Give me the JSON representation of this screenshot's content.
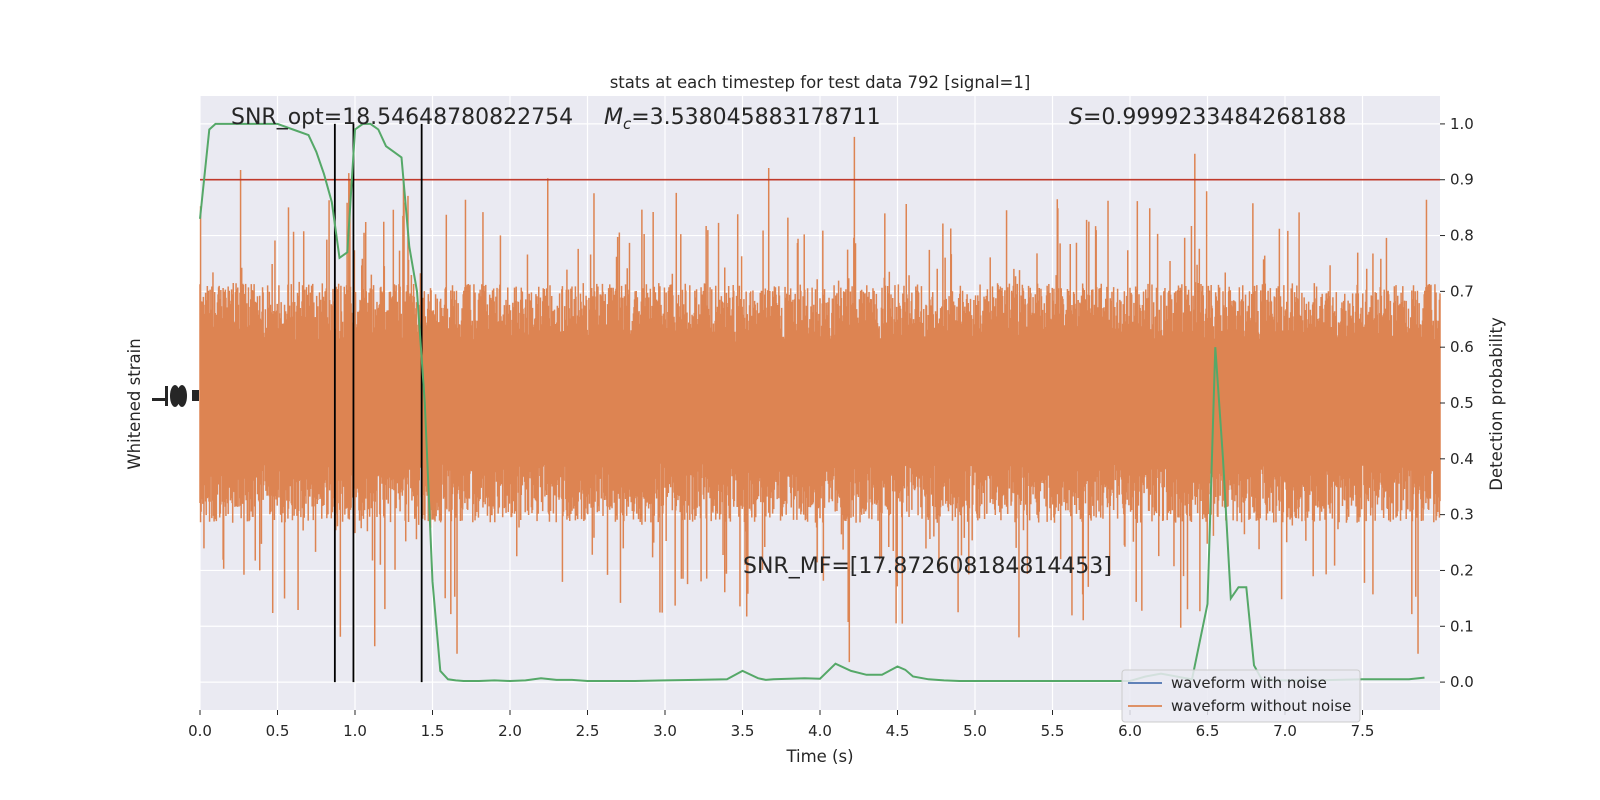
{
  "chart_data": {
    "type": "line",
    "title": "stats at each timestep for test data 792 [signal=1]",
    "xlabel": "Time (s)",
    "ylabel_left": "Whitened strain",
    "ylabel_right": "Detection probability",
    "xlim": [
      0.0,
      8.0
    ],
    "ylim_right": [
      -0.05,
      1.05
    ],
    "x_ticks": [
      "0.0",
      "0.5",
      "1.0",
      "1.5",
      "2.0",
      "2.5",
      "3.0",
      "3.5",
      "4.0",
      "4.5",
      "5.0",
      "5.5",
      "6.0",
      "6.5",
      "7.0",
      "7.5"
    ],
    "y_ticks_right": [
      "0.0",
      "0.1",
      "0.2",
      "0.3",
      "0.4",
      "0.5",
      "0.6",
      "0.7",
      "0.8",
      "0.9",
      "1.0"
    ],
    "grid": true,
    "legend_position": "lower-right",
    "annotations": {
      "snr_opt": "SNR_opt=18.54648780822754",
      "mc_symbol": "M",
      "mc_sub": "c",
      "mc_value": "=3.538045883178711",
      "s_symbol": "S",
      "s_value": "=0.9999233484268188",
      "snr_mf": "SNR_MF=[17.872608184814453]"
    },
    "threshold": {
      "value": 0.9,
      "color": "#c0392b"
    },
    "vertical_lines": [
      0.87,
      0.99,
      1.43
    ],
    "series": [
      {
        "name": "waveform with noise",
        "color": "#4c72b0"
      },
      {
        "name": "waveform without noise",
        "color": "#dd8452"
      },
      {
        "color": "#55a868",
        "x": [
          0.0,
          0.06,
          0.1,
          0.15,
          0.2,
          0.3,
          0.4,
          0.5,
          0.6,
          0.7,
          0.75,
          0.8,
          0.85,
          0.9,
          0.95,
          1.0,
          1.05,
          1.1,
          1.15,
          1.2,
          1.25,
          1.3,
          1.35,
          1.4,
          1.45,
          1.5,
          1.55,
          1.6,
          1.65,
          1.7,
          1.8,
          1.9,
          2.0,
          2.1,
          2.2,
          2.3,
          2.4,
          2.5,
          2.6,
          2.7,
          2.8,
          3.0,
          3.2,
          3.4,
          3.5,
          3.6,
          3.65,
          3.7,
          3.8,
          3.9,
          4.0,
          4.1,
          4.2,
          4.3,
          4.4,
          4.5,
          4.55,
          4.6,
          4.7,
          4.8,
          4.9,
          5.0,
          5.5,
          6.0,
          6.1,
          6.2,
          6.3,
          6.4,
          6.5,
          6.55,
          6.6,
          6.65,
          6.7,
          6.75,
          6.8,
          6.85,
          6.9,
          6.95,
          7.0,
          7.1,
          7.2,
          7.5,
          7.8,
          7.9
        ],
        "values": [
          0.83,
          0.99,
          1.0,
          1.0,
          1.0,
          1.0,
          1.0,
          1.0,
          0.99,
          0.98,
          0.95,
          0.91,
          0.86,
          0.76,
          0.77,
          0.99,
          1.0,
          1.0,
          0.99,
          0.96,
          0.95,
          0.94,
          0.78,
          0.7,
          0.5,
          0.18,
          0.02,
          0.005,
          0.003,
          0.002,
          0.002,
          0.003,
          0.002,
          0.003,
          0.007,
          0.004,
          0.004,
          0.002,
          0.002,
          0.002,
          0.002,
          0.003,
          0.004,
          0.005,
          0.02,
          0.007,
          0.004,
          0.005,
          0.006,
          0.007,
          0.006,
          0.033,
          0.02,
          0.013,
          0.013,
          0.028,
          0.022,
          0.01,
          0.005,
          0.003,
          0.002,
          0.002,
          0.002,
          0.002,
          0.01,
          0.015,
          0.01,
          0.005,
          0.14,
          0.6,
          0.4,
          0.15,
          0.17,
          0.17,
          0.03,
          0.005,
          0.003,
          0.003,
          0.003,
          0.003,
          0.003,
          0.005,
          0.005,
          0.008
        ]
      }
    ]
  }
}
